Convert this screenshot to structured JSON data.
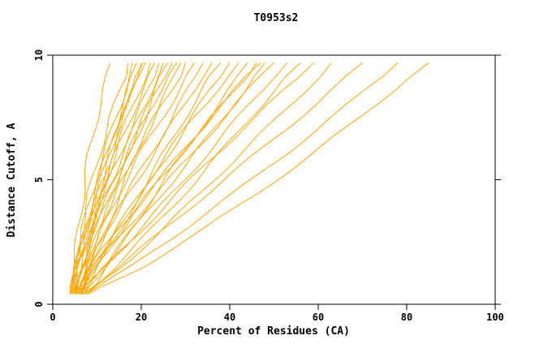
{
  "chart_data": {
    "type": "line",
    "title": "T0953s2",
    "xlabel": "Percent of Residues (CA)",
    "ylabel": "Distance Cutoff, A",
    "xlim": [
      0,
      100
    ],
    "ylim": [
      0,
      10
    ],
    "x_ticks": [
      0,
      20,
      40,
      60,
      80,
      100
    ],
    "y_ticks": [
      0,
      5,
      10
    ],
    "grid": false,
    "legend": "none",
    "line_color": "#ffa500",
    "axis_color": "#000000",
    "y_levels": [
      0.4,
      1.5,
      3,
      4.5,
      6,
      7.5,
      9.7
    ],
    "series": [
      [
        4,
        4.5,
        5.5,
        6.9,
        8.4,
        10.2,
        13
      ],
      [
        4.5,
        5.1,
        6.6,
        8.5,
        10.7,
        13.1,
        17
      ],
      [
        4,
        5.1,
        7,
        9.2,
        11.6,
        14.1,
        18
      ],
      [
        5,
        5.7,
        7.4,
        9.5,
        11.9,
        14.6,
        19
      ],
      [
        4.5,
        5.7,
        7.9,
        10.3,
        12.9,
        15.7,
        20
      ],
      [
        5.5,
        6.2,
        7.9,
        10.1,
        12.6,
        15.4,
        20.5
      ],
      [
        4,
        5.1,
        7.2,
        9.9,
        12.8,
        16,
        21
      ],
      [
        5,
        6.3,
        8.7,
        11.4,
        14.2,
        17.3,
        22
      ],
      [
        6,
        6.9,
        8.9,
        11.4,
        14.4,
        17.6,
        23
      ],
      [
        4.5,
        6,
        8.7,
        11.8,
        15.1,
        18.6,
        24
      ],
      [
        5.5,
        6.7,
        9.2,
        12.2,
        15.6,
        19.2,
        25
      ],
      [
        6.5,
        8,
        10.7,
        13.8,
        17.1,
        20.6,
        26
      ],
      [
        4,
        5.8,
        9,
        12.6,
        16.5,
        20.6,
        27
      ],
      [
        5,
        6.4,
        9.4,
        12.9,
        16.9,
        21.2,
        28
      ],
      [
        6,
        8.2,
        11.7,
        15.3,
        19.2,
        23.1,
        29
      ],
      [
        5,
        6.9,
        10.4,
        14.4,
        18.6,
        23.1,
        30
      ],
      [
        6.5,
        8.1,
        11.4,
        15.3,
        19.7,
        24.5,
        32
      ],
      [
        5.5,
        8.2,
        12.5,
        17.1,
        21.8,
        26.7,
        34
      ],
      [
        6,
        8.3,
        12.5,
        17.2,
        22.3,
        27.7,
        36
      ],
      [
        7,
        9.9,
        14.7,
        19.6,
        24.7,
        30,
        38
      ],
      [
        5,
        9.1,
        14.8,
        20.4,
        26.1,
        31.7,
        40
      ],
      [
        6.5,
        9.2,
        14.2,
        19.8,
        25.8,
        32.2,
        42
      ],
      [
        7.5,
        11.8,
        17.7,
        23.6,
        29.5,
        35.3,
        44
      ],
      [
        6,
        9.8,
        15.9,
        22.2,
        28.9,
        35.7,
        46
      ],
      [
        7,
        11.8,
        18.5,
        25.1,
        31.7,
        38.3,
        48
      ],
      [
        5.5,
        9.7,
        16.5,
        23.6,
        31,
        38.6,
        50
      ],
      [
        6.5,
        12,
        19.5,
        27,
        34.5,
        42,
        53
      ],
      [
        7.5,
        13.9,
        22,
        29.8,
        37.5,
        45,
        56
      ],
      [
        6,
        11.6,
        19.9,
        28.4,
        37.1,
        45.9,
        59
      ],
      [
        7,
        15.2,
        24.8,
        33.8,
        42.5,
        50.9,
        63
      ],
      [
        6.5,
        14.8,
        25.4,
        35.6,
        45.7,
        55.6,
        70
      ],
      [
        7.5,
        17.8,
        29.9,
        41.3,
        52.2,
        62.8,
        78
      ],
      [
        8,
        20.6,
        34.1,
        46.4,
        58.1,
        69.2,
        85
      ],
      [
        5,
        8.6,
        14.7,
        21.4,
        28.4,
        35.8,
        47
      ]
    ]
  }
}
